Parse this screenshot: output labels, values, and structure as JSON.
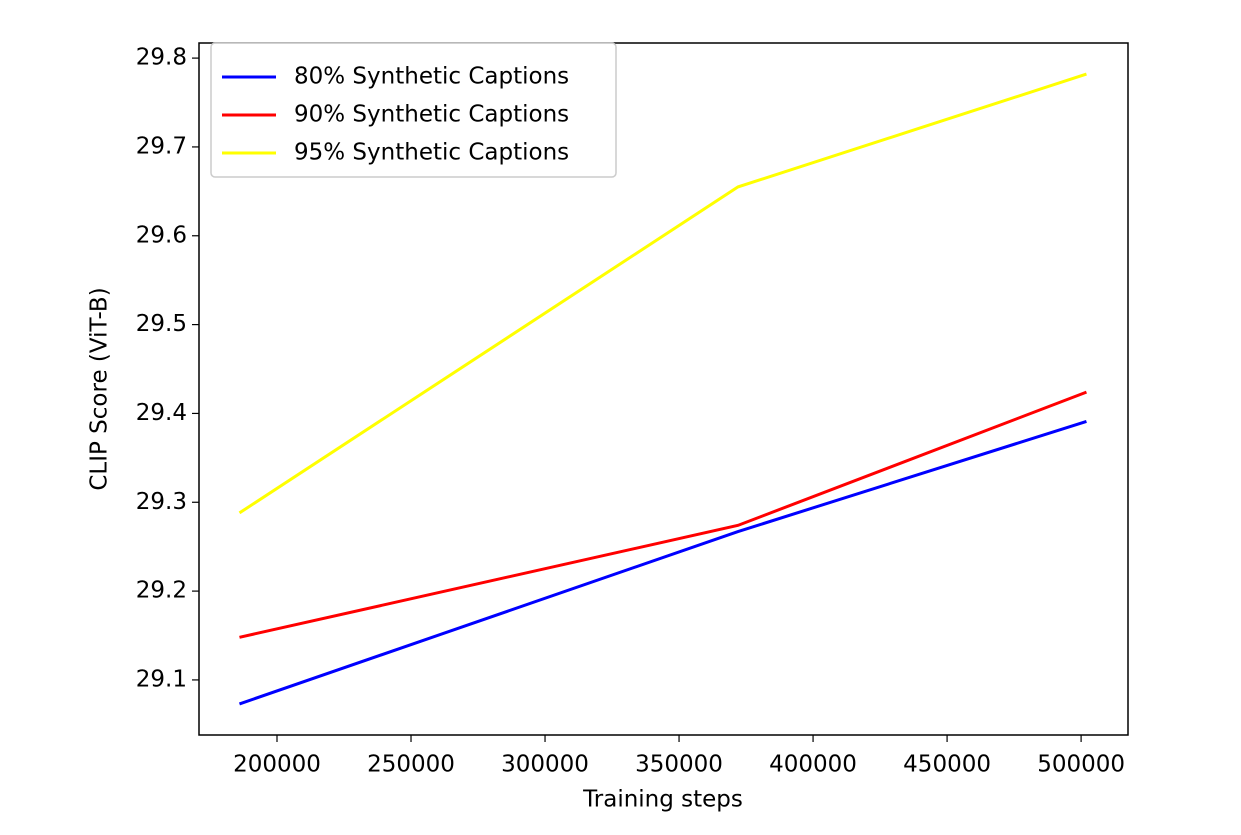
{
  "chart_data": {
    "type": "line",
    "x_label": "Training steps",
    "y_label": "CLIP Score (ViT-B)",
    "x": [
      186000,
      372000,
      502000
    ],
    "series": [
      {
        "name": "80% Synthetic Captions",
        "color": "#0000ff",
        "values": [
          29.073,
          29.267,
          29.391
        ]
      },
      {
        "name": "90% Synthetic Captions",
        "color": "#ff0000",
        "values": [
          29.148,
          29.274,
          29.424
        ]
      },
      {
        "name": "95% Synthetic Captions",
        "color": "#ffff00",
        "values": [
          29.288,
          29.655,
          29.782
        ]
      }
    ],
    "xlim": [
      170900,
      517500
    ],
    "xticks": [
      200000,
      250000,
      300000,
      350000,
      400000,
      450000,
      500000
    ],
    "ylim": [
      29.038,
      29.817
    ],
    "yticks": [
      29.1,
      29.2,
      29.3,
      29.4,
      29.5,
      29.6,
      29.7,
      29.8
    ],
    "legend": "upper left"
  }
}
